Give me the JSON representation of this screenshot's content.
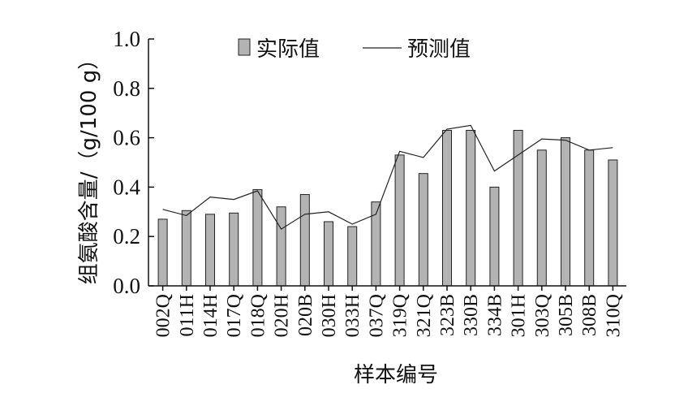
{
  "chart_data": {
    "type": "bar",
    "xlabel": "样本编号",
    "ylabel": "组氨酸含量/（g/100 g）",
    "ylim": [
      0,
      1.0
    ],
    "yticks": [
      "0.0",
      "0.2",
      "0.4",
      "0.6",
      "0.8",
      "1.0"
    ],
    "grid": false,
    "legend_position": "top",
    "categories": [
      "002Q",
      "011H",
      "014H",
      "017Q",
      "018Q",
      "020H",
      "020B",
      "030H",
      "033H",
      "037Q",
      "319Q",
      "321Q",
      "323B",
      "330B",
      "334B",
      "301H",
      "303Q",
      "305B",
      "308B",
      "310Q"
    ],
    "series": [
      {
        "name": "实际值",
        "kind": "bar",
        "color": "#b3b3b3",
        "values": [
          0.27,
          0.305,
          0.29,
          0.295,
          0.39,
          0.32,
          0.37,
          0.26,
          0.24,
          0.34,
          0.53,
          0.455,
          0.63,
          0.63,
          0.4,
          0.63,
          0.55,
          0.6,
          0.55,
          0.51
        ]
      },
      {
        "name": "预测值",
        "kind": "line",
        "color": "#222222",
        "values": [
          0.31,
          0.285,
          0.36,
          0.35,
          0.385,
          0.23,
          0.29,
          0.3,
          0.25,
          0.29,
          0.545,
          0.52,
          0.635,
          0.65,
          0.465,
          0.53,
          0.595,
          0.59,
          0.55,
          0.56
        ]
      }
    ]
  }
}
